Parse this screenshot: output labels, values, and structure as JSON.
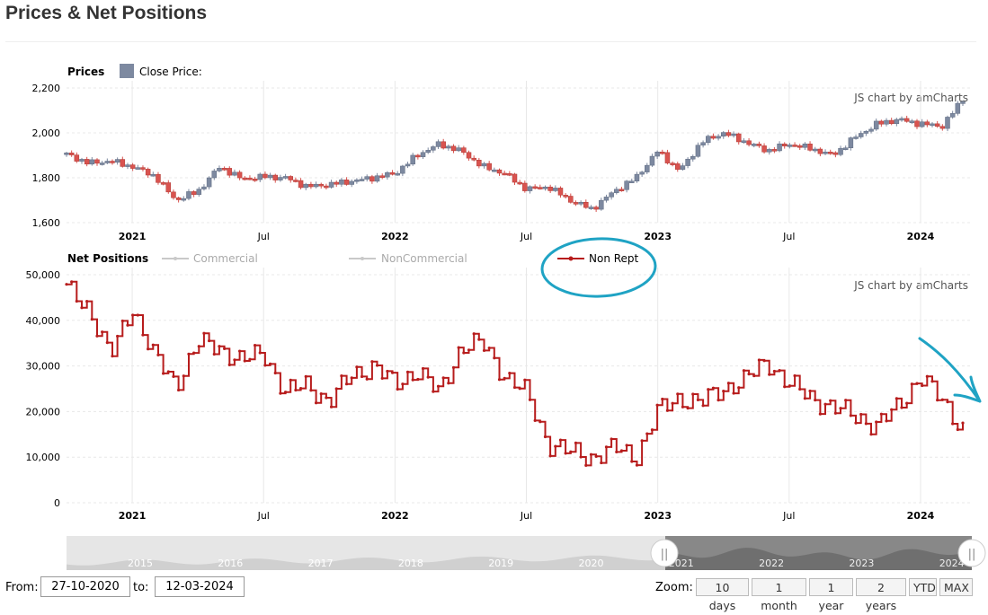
{
  "page_title": "Prices & Net Positions",
  "credit_text": "JS chart by amCharts",
  "prices_panel": {
    "title": "Prices",
    "legend_label": "Close Price:",
    "legend_color": "#7d89a0"
  },
  "positions_panel": {
    "title": "Net Positions",
    "legend": [
      {
        "label": "Commercial",
        "color": "#c9c9c9",
        "active": false
      },
      {
        "label": "NonCommercial",
        "color": "#c9c9c9",
        "active": false
      },
      {
        "label": "Non Rept",
        "color": "#b71c1c",
        "active": true
      }
    ]
  },
  "annotation_color": "#1fa3c4",
  "navigator": {
    "labels": [
      "2015",
      "2016",
      "2017",
      "2018",
      "2019",
      "2020",
      "2021",
      "2022",
      "2023",
      "2024"
    ]
  },
  "controls": {
    "from_label": "From:",
    "from_value": "27-10-2020",
    "to_label": "to:",
    "to_value": "12-03-2024",
    "zoom_label": "Zoom:",
    "zoom_buttons": [
      "10 days",
      "1 month",
      "1 year",
      "2 years",
      "YTD",
      "MAX"
    ]
  },
  "chart_data": [
    {
      "type": "candlestick",
      "title": "Prices",
      "series": [
        {
          "name": "Close Price"
        }
      ],
      "x_tick_labels": [
        "2021",
        "Jul",
        "2022",
        "Jul",
        "2023",
        "Jul",
        "2024"
      ],
      "x_tick_dates": [
        "2021-01",
        "2021-07",
        "2022-01",
        "2022-07",
        "2023-01",
        "2023-07",
        "2024-01"
      ],
      "y_tick_labels": [
        "1,600",
        "1,800",
        "2,000",
        "2,200"
      ],
      "ylim": [
        1600,
        2200
      ],
      "x": [
        "2020-10",
        "2020-11",
        "2020-12",
        "2021-01",
        "2021-02",
        "2021-03",
        "2021-04",
        "2021-05",
        "2021-06",
        "2021-07",
        "2021-08",
        "2021-09",
        "2021-10",
        "2021-11",
        "2021-12",
        "2022-01",
        "2022-02",
        "2022-03",
        "2022-04",
        "2022-05",
        "2022-06",
        "2022-07",
        "2022-08",
        "2022-09",
        "2022-10",
        "2022-11",
        "2022-12",
        "2023-01",
        "2023-02",
        "2023-03",
        "2023-04",
        "2023-05",
        "2023-06",
        "2023-07",
        "2023-08",
        "2023-09",
        "2023-10",
        "2023-11",
        "2023-12",
        "2024-01",
        "2024-02",
        "2024-03"
      ],
      "values": [
        1905,
        1865,
        1875,
        1850,
        1810,
        1700,
        1740,
        1850,
        1795,
        1805,
        1800,
        1760,
        1770,
        1785,
        1800,
        1820,
        1900,
        1950,
        1920,
        1850,
        1820,
        1750,
        1760,
        1700,
        1660,
        1740,
        1800,
        1920,
        1830,
        1960,
        2000,
        1960,
        1920,
        1950,
        1930,
        1900,
        1980,
        2040,
        2060,
        2040,
        2030,
        2160
      ]
    },
    {
      "type": "line",
      "title": "Net Positions",
      "series": [
        {
          "name": "Non Rept"
        }
      ],
      "x_tick_labels": [
        "2021",
        "Jul",
        "2022",
        "Jul",
        "2023",
        "Jul",
        "2024"
      ],
      "x_tick_dates": [
        "2021-01",
        "2021-07",
        "2022-01",
        "2022-07",
        "2023-01",
        "2023-07",
        "2024-01"
      ],
      "y_tick_labels": [
        "0",
        "10,000",
        "20,000",
        "30,000",
        "40,000",
        "50,000"
      ],
      "ylim": [
        0,
        50000
      ],
      "x": [
        "2020-10",
        "2020-11",
        "2020-12",
        "2021-01",
        "2021-02",
        "2021-03",
        "2021-04",
        "2021-05",
        "2021-06",
        "2021-07",
        "2021-08",
        "2021-09",
        "2021-10",
        "2021-11",
        "2021-12",
        "2022-01",
        "2022-02",
        "2022-03",
        "2022-04",
        "2022-05",
        "2022-06",
        "2022-07",
        "2022-08",
        "2022-09",
        "2022-10",
        "2022-11",
        "2022-12",
        "2023-01",
        "2023-02",
        "2023-03",
        "2023-04",
        "2023-05",
        "2023-06",
        "2023-07",
        "2023-08",
        "2023-09",
        "2023-10",
        "2023-11",
        "2023-12",
        "2024-01",
        "2024-02",
        "2024-03"
      ],
      "values": [
        47000,
        43000,
        32000,
        43000,
        32000,
        26000,
        35000,
        34000,
        31000,
        33000,
        24000,
        26000,
        22000,
        28000,
        30000,
        26000,
        29000,
        24000,
        34000,
        35000,
        28000,
        24000,
        13000,
        11000,
        10000,
        12000,
        10000,
        20000,
        23000,
        22000,
        25000,
        27000,
        31000,
        26000,
        23000,
        21000,
        19000,
        17000,
        21000,
        28000,
        22000,
        16000
      ]
    }
  ]
}
